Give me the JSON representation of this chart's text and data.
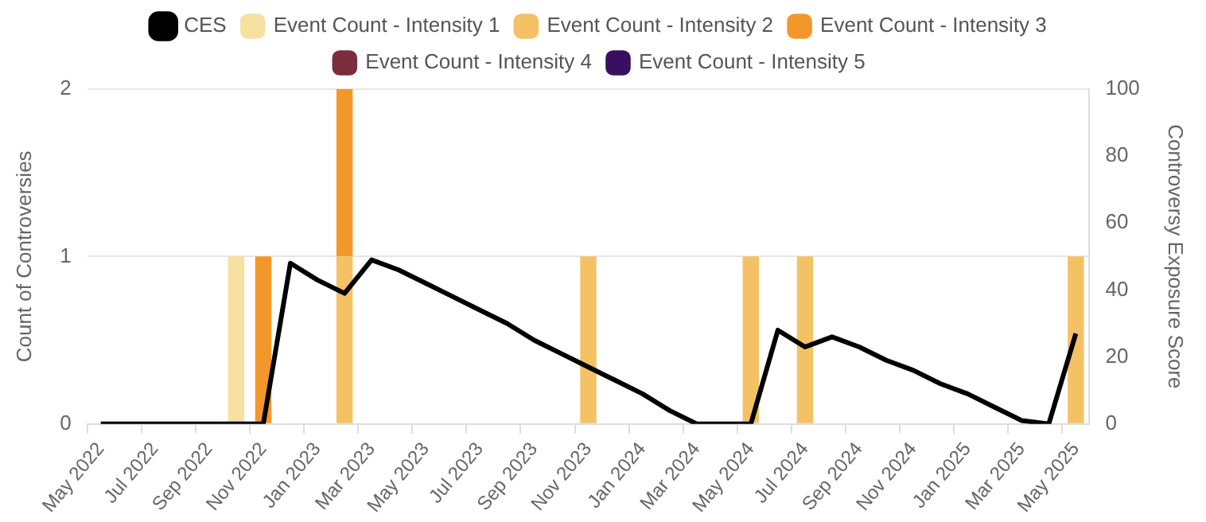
{
  "chart_data": {
    "type": "bar",
    "stacked": true,
    "legend": "top",
    "grid": "y",
    "ylabel": "Count of Controversies",
    "y2label": "Controversy Exposure Score",
    "categories": [
      "May 2022",
      null,
      "Jul 2022",
      null,
      "Sep 2022",
      null,
      "Nov 2022",
      null,
      "Jan 2023",
      null,
      "Mar 2023",
      null,
      "May 2023",
      null,
      "Jul 2023",
      null,
      "Sep 2023",
      null,
      "Nov 2023",
      null,
      "Jan 2024",
      null,
      "Mar 2024",
      null,
      "May 2024",
      null,
      "Jul 2024",
      null,
      "Sep 2024",
      null,
      "Nov 2024",
      null,
      "Jan 2025",
      null,
      "Mar 2025",
      null,
      "May 2025"
    ],
    "ylim": [
      0,
      2
    ],
    "yticks": [
      0,
      1,
      2
    ],
    "y2lim": [
      0,
      100
    ],
    "y2ticks": [
      0,
      20,
      40,
      60,
      80,
      100
    ],
    "series": [
      {
        "name": "CES",
        "type": "line",
        "axis": "y2",
        "color": "#000000",
        "values": [
          0,
          0,
          0,
          0,
          0,
          0,
          0,
          48,
          43,
          39,
          49,
          46,
          42,
          38,
          34,
          30,
          25,
          21,
          17,
          13,
          9,
          4,
          0,
          0,
          0,
          28,
          23,
          26,
          23,
          19,
          16,
          12,
          9,
          5,
          1,
          0,
          27
        ]
      },
      {
        "name": "Event Count - Intensity 1",
        "color": "#f7e1a0",
        "values": [
          0,
          0,
          0,
          0,
          0,
          1,
          0,
          0,
          0,
          0,
          0,
          0,
          0,
          0,
          0,
          0,
          0,
          0,
          0,
          0,
          0,
          0,
          0,
          0,
          0,
          0,
          0,
          0,
          0,
          0,
          0,
          0,
          0,
          0,
          0,
          0,
          0
        ]
      },
      {
        "name": "Event Count - Intensity 2",
        "color": "#f4c264",
        "values": [
          0,
          0,
          0,
          0,
          0,
          0,
          0,
          0,
          0,
          1,
          0,
          0,
          0,
          0,
          0,
          0,
          0,
          0,
          1,
          0,
          0,
          0,
          0,
          0,
          1,
          0,
          1,
          0,
          0,
          0,
          0,
          0,
          0,
          0,
          0,
          0,
          1
        ]
      },
      {
        "name": "Event Count - Intensity 3",
        "color": "#f4972a",
        "values": [
          0,
          0,
          0,
          0,
          0,
          0,
          1,
          0,
          0,
          1,
          0,
          0,
          0,
          0,
          0,
          0,
          0,
          0,
          0,
          0,
          0,
          0,
          0,
          0,
          0,
          0,
          0,
          0,
          0,
          0,
          0,
          0,
          0,
          0,
          0,
          0,
          0
        ]
      },
      {
        "name": "Event Count - Intensity 4",
        "color": "#7b2d3c",
        "values": [
          0,
          0,
          0,
          0,
          0,
          0,
          0,
          0,
          0,
          0,
          0,
          0,
          0,
          0,
          0,
          0,
          0,
          0,
          0,
          0,
          0,
          0,
          0,
          0,
          0,
          0,
          0,
          0,
          0,
          0,
          0,
          0,
          0,
          0,
          0,
          0,
          0
        ]
      },
      {
        "name": "Event Count - Intensity 5",
        "color": "#3b0f5f",
        "values": [
          0,
          0,
          0,
          0,
          0,
          0,
          0,
          0,
          0,
          0,
          0,
          0,
          0,
          0,
          0,
          0,
          0,
          0,
          0,
          0,
          0,
          0,
          0,
          0,
          0,
          0,
          0,
          0,
          0,
          0,
          0,
          0,
          0,
          0,
          0,
          0,
          0
        ]
      }
    ]
  }
}
